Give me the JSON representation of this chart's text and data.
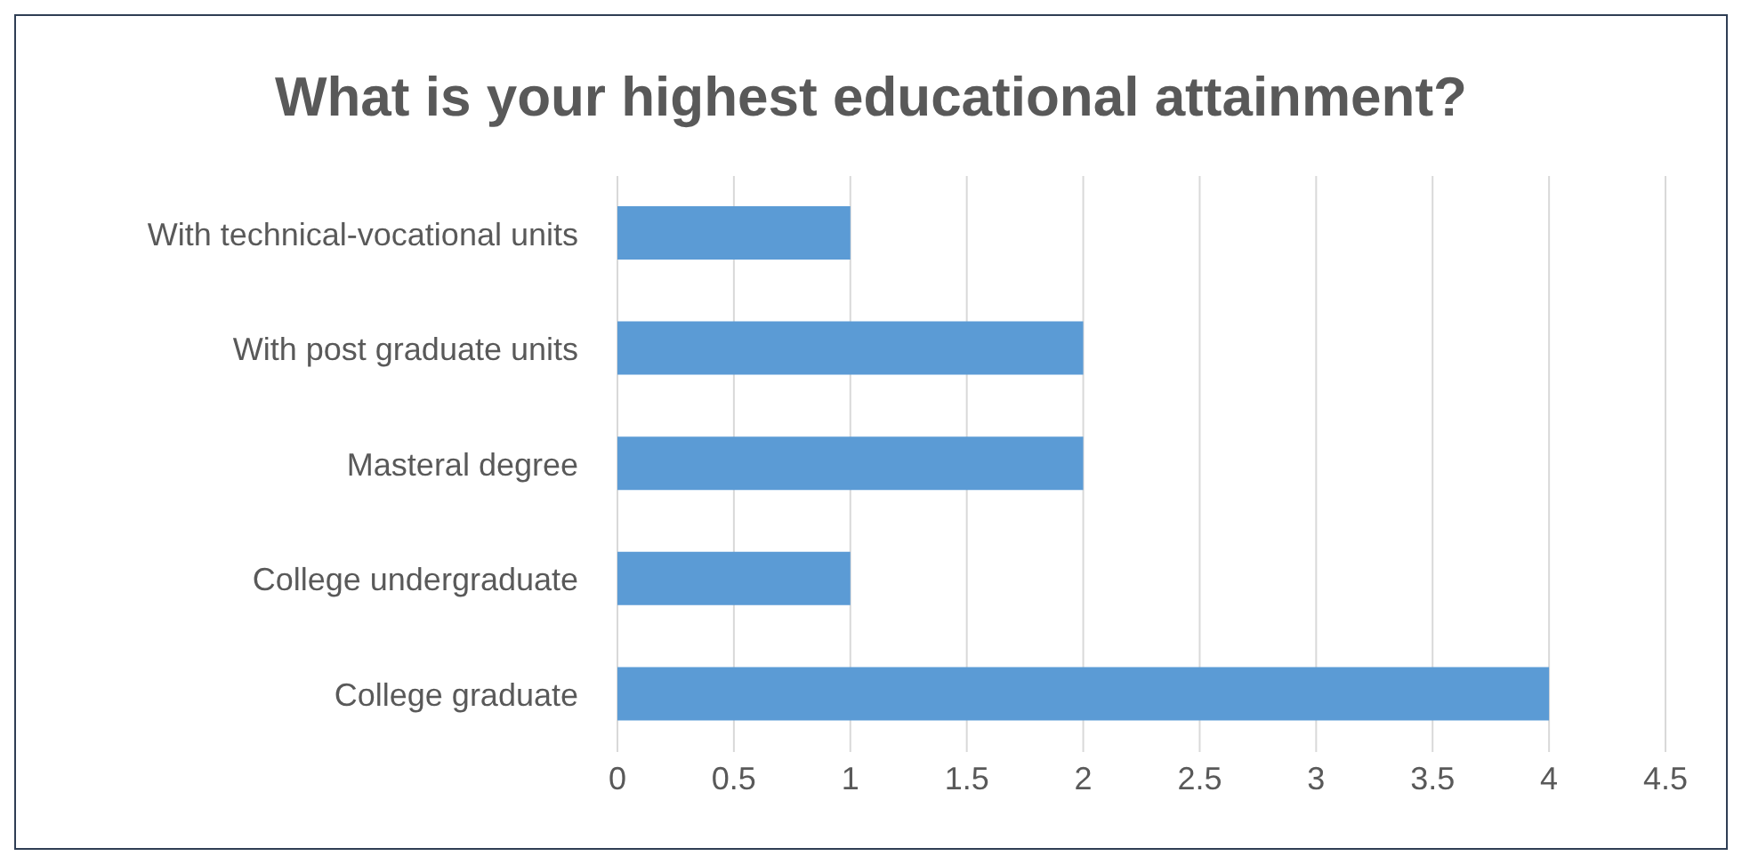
{
  "chart_data": {
    "type": "bar",
    "orientation": "horizontal",
    "title": "What is your highest educational attainment?",
    "categories": [
      "With technical-vocational units",
      "With post graduate units",
      "Masteral degree",
      "College undergraduate",
      "College graduate"
    ],
    "values": [
      1,
      2,
      2,
      1,
      4
    ],
    "color": "#5b9bd5",
    "xlim": [
      0,
      4.5
    ],
    "xticks": [
      0,
      0.5,
      1,
      1.5,
      2,
      2.5,
      3,
      3.5,
      4,
      4.5
    ],
    "grid": "x",
    "legend": false
  }
}
